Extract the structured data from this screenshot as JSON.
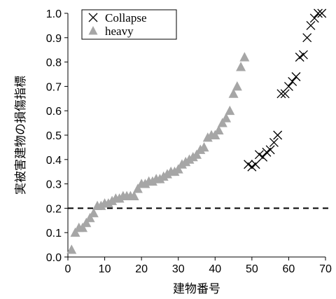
{
  "chart_data": {
    "type": "scatter",
    "title": "",
    "xlabel": "建物番号",
    "ylabel": "実被害建物の損傷指標",
    "xlim": [
      0,
      70
    ],
    "ylim": [
      0.0,
      1.0
    ],
    "x_ticks": [
      "0",
      "10",
      "20",
      "30",
      "40",
      "50",
      "60",
      "70"
    ],
    "y_ticks": [
      "0.0",
      "0.1",
      "0.2",
      "0.3",
      "0.4",
      "0.5",
      "0.6",
      "0.7",
      "0.8",
      "0.9",
      "1.0"
    ],
    "grid": false,
    "legend_position": "top-left",
    "reference_line": {
      "y": 0.2,
      "style": "dashed"
    },
    "series": [
      {
        "name": "Collapse",
        "marker": "x",
        "color": "#000000",
        "points": [
          [
            49,
            0.38
          ],
          [
            50,
            0.37
          ],
          [
            51,
            0.38
          ],
          [
            52,
            0.42
          ],
          [
            53,
            0.41
          ],
          [
            54,
            0.43
          ],
          [
            55,
            0.44
          ],
          [
            56,
            0.47
          ],
          [
            57,
            0.5
          ],
          [
            58,
            0.67
          ],
          [
            59,
            0.67
          ],
          [
            60,
            0.7
          ],
          [
            61,
            0.72
          ],
          [
            62,
            0.74
          ],
          [
            63,
            0.82
          ],
          [
            64,
            0.83
          ],
          [
            65,
            0.9
          ],
          [
            66,
            0.95
          ],
          [
            67,
            0.98
          ],
          [
            68,
            1.0
          ],
          [
            69,
            1.0
          ]
        ]
      },
      {
        "name": "heavy",
        "marker": "triangle",
        "color": "#a6a6a6",
        "points": [
          [
            1,
            0.03
          ],
          [
            2,
            0.1
          ],
          [
            3,
            0.12
          ],
          [
            4,
            0.12
          ],
          [
            5,
            0.14
          ],
          [
            6,
            0.16
          ],
          [
            7,
            0.18
          ],
          [
            8,
            0.21
          ],
          [
            9,
            0.21
          ],
          [
            10,
            0.22
          ],
          [
            11,
            0.22
          ],
          [
            12,
            0.23
          ],
          [
            13,
            0.24
          ],
          [
            14,
            0.24
          ],
          [
            15,
            0.25
          ],
          [
            16,
            0.25
          ],
          [
            17,
            0.25
          ],
          [
            18,
            0.25
          ],
          [
            19,
            0.28
          ],
          [
            20,
            0.3
          ],
          [
            21,
            0.3
          ],
          [
            22,
            0.31
          ],
          [
            23,
            0.31
          ],
          [
            24,
            0.32
          ],
          [
            25,
            0.32
          ],
          [
            26,
            0.33
          ],
          [
            27,
            0.34
          ],
          [
            28,
            0.35
          ],
          [
            29,
            0.35
          ],
          [
            30,
            0.36
          ],
          [
            31,
            0.38
          ],
          [
            32,
            0.39
          ],
          [
            33,
            0.4
          ],
          [
            34,
            0.41
          ],
          [
            35,
            0.42
          ],
          [
            36,
            0.44
          ],
          [
            37,
            0.45
          ],
          [
            38,
            0.49
          ],
          [
            39,
            0.5
          ],
          [
            40,
            0.5
          ],
          [
            41,
            0.52
          ],
          [
            42,
            0.55
          ],
          [
            43,
            0.57
          ],
          [
            44,
            0.6
          ],
          [
            45,
            0.67
          ],
          [
            46,
            0.7
          ],
          [
            47,
            0.78
          ],
          [
            48,
            0.82
          ]
        ]
      }
    ]
  }
}
